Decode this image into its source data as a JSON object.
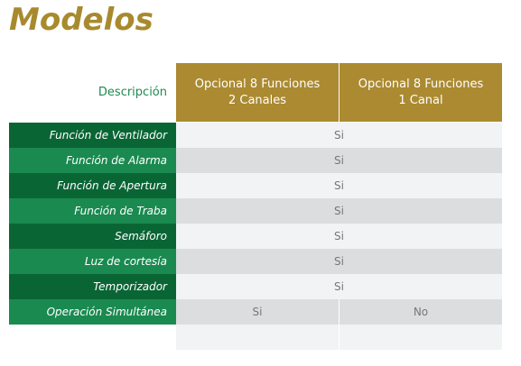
{
  "header": {
    "title": "Modelos"
  },
  "table": {
    "corner": "Descripción",
    "columns": [
      [
        "Opcional 8 Funciones",
        "2 Canales"
      ],
      [
        "Opcional 8 Funciones",
        "1 Canal"
      ]
    ],
    "rows": [
      {
        "label": "Función de Ventilador",
        "cells": [
          "Si"
        ]
      },
      {
        "label": "Función de Alarma",
        "cells": [
          "Si"
        ]
      },
      {
        "label": "Función de Apertura",
        "cells": [
          "Si"
        ]
      },
      {
        "label": "Función de Traba",
        "cells": [
          "Si"
        ]
      },
      {
        "label": "Semáforo",
        "cells": [
          "Si"
        ]
      },
      {
        "label": "Luz de cortesía",
        "cells": [
          "Si"
        ]
      },
      {
        "label": "Temporizador",
        "cells": [
          "Si"
        ]
      },
      {
        "label": "Operación Simultánea",
        "cells": [
          "Si",
          "No"
        ]
      }
    ]
  }
}
